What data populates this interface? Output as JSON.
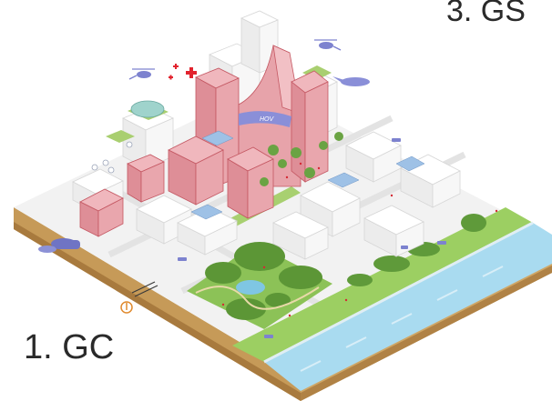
{
  "labels": {
    "gc": "1. GC",
    "gs": "3. GS",
    "vehicle_tag": "HOV"
  },
  "icons": [
    "helicopter-icon",
    "helicopter-icon",
    "medical-cross-icon",
    "thermometer-icon",
    "drone-icon"
  ],
  "colors": {
    "highlight_buildings": "#e39aa2",
    "highlight_edge": "#c45762",
    "park_green": "#7fb24a",
    "water": "#9fd4ec",
    "soil": "#c79a5a",
    "pipes": "#6f74c4",
    "ground": "#f1f1f1"
  }
}
